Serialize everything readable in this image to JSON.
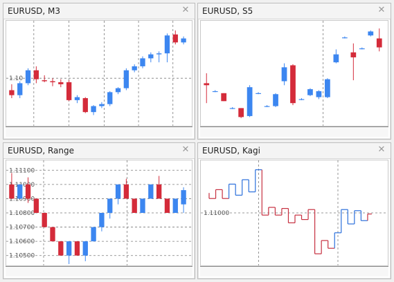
{
  "colors": {
    "bull": "#3c86f0",
    "bear": "#d42b3a",
    "grid": "#7a7a7a",
    "kagi_up": "#2a6fdb",
    "kagi_down": "#c62f3f"
  },
  "panels": [
    {
      "title": "EURUSD, M3",
      "close_icon": "close-icon",
      "price_labels": [
        "1.10"
      ],
      "chart_data": {
        "type": "candlestick",
        "candles": [
          {
            "o": 1.0988,
            "h": 1.0994,
            "l": 1.098,
            "c": 1.0983
          },
          {
            "o": 1.0983,
            "h": 1.0997,
            "l": 1.098,
            "c": 1.0995
          },
          {
            "o": 1.0995,
            "h": 1.101,
            "l": 1.0993,
            "c": 1.1008
          },
          {
            "o": 1.1008,
            "h": 1.1012,
            "l": 1.0995,
            "c": 1.0999
          },
          {
            "o": 1.0998,
            "h": 1.1003,
            "l": 1.0996,
            "c": 1.0997
          },
          {
            "o": 1.0997,
            "h": 1.1,
            "l": 1.0992,
            "c": 1.0996
          },
          {
            "o": 1.0996,
            "h": 1.0999,
            "l": 1.0991,
            "c": 1.0994
          },
          {
            "o": 1.0996,
            "h": 1.0998,
            "l": 1.0977,
            "c": 1.0978
          },
          {
            "o": 1.0978,
            "h": 1.0983,
            "l": 1.0975,
            "c": 1.0981
          },
          {
            "o": 1.098,
            "h": 1.0981,
            "l": 1.0965,
            "c": 1.0966
          },
          {
            "o": 1.0966,
            "h": 1.0973,
            "l": 1.0963,
            "c": 1.0972
          },
          {
            "o": 1.0972,
            "h": 1.0976,
            "l": 1.097,
            "c": 1.0974
          },
          {
            "o": 1.0974,
            "h": 1.0987,
            "l": 1.0972,
            "c": 1.0986
          },
          {
            "o": 1.0986,
            "h": 1.0991,
            "l": 1.0984,
            "c": 1.099
          },
          {
            "o": 1.099,
            "h": 1.101,
            "l": 1.0988,
            "c": 1.1008
          },
          {
            "o": 1.1008,
            "h": 1.1014,
            "l": 1.1006,
            "c": 1.1012
          },
          {
            "o": 1.1012,
            "h": 1.1022,
            "l": 1.101,
            "c": 1.102
          },
          {
            "o": 1.102,
            "h": 1.1026,
            "l": 1.1016,
            "c": 1.1024
          },
          {
            "o": 1.1024,
            "h": 1.1027,
            "l": 1.1016,
            "c": 1.1025
          },
          {
            "o": 1.1025,
            "h": 1.1045,
            "l": 1.1016,
            "c": 1.1043
          },
          {
            "o": 1.1044,
            "h": 1.1048,
            "l": 1.1034,
            "c": 1.1036
          },
          {
            "o": 1.1036,
            "h": 1.1042,
            "l": 1.1034,
            "c": 1.104
          }
        ],
        "ylim": [
          1.0955,
          1.1055
        ],
        "hline": 1.1,
        "vlines": [
          3.2,
          7.5,
          11.8,
          16.0,
          20.2
        ]
      }
    },
    {
      "title": "EURUSD, S5",
      "close_icon": "close-icon",
      "price_labels": [],
      "chart_data": {
        "type": "candlestick",
        "candles": [
          {
            "o": 1.1,
            "h": 1.101,
            "l": 1.098,
            "c": 1.0998
          },
          {
            "o": 1.0992,
            "h": 1.0993,
            "l": 1.0991,
            "c": 1.0992
          },
          {
            "o": 1.099,
            "h": 1.099,
            "l": 1.0982,
            "c": 1.0982
          },
          {
            "o": 1.0975,
            "h": 1.0976,
            "l": 1.0974,
            "c": 1.0975
          },
          {
            "o": 1.0975,
            "h": 1.0975,
            "l": 1.0965,
            "c": 1.0966
          },
          {
            "o": 1.0967,
            "h": 1.0998,
            "l": 1.0966,
            "c": 1.0996
          },
          {
            "o": 1.099,
            "h": 1.0991,
            "l": 1.0989,
            "c": 1.099
          },
          {
            "o": 1.0977,
            "h": 1.0978,
            "l": 1.0976,
            "c": 1.0977
          },
          {
            "o": 1.0977,
            "h": 1.099,
            "l": 1.0976,
            "c": 1.0989
          },
          {
            "o": 1.1002,
            "h": 1.102,
            "l": 1.0998,
            "c": 1.1016
          },
          {
            "o": 1.1018,
            "h": 1.1019,
            "l": 1.0978,
            "c": 1.098
          },
          {
            "o": 1.0984,
            "h": 1.0985,
            "l": 1.0983,
            "c": 1.0984
          },
          {
            "o": 1.0988,
            "h": 1.0995,
            "l": 1.0987,
            "c": 1.0994
          },
          {
            "o": 1.0986,
            "h": 1.0993,
            "l": 1.0984,
            "c": 1.0992
          },
          {
            "o": 1.0986,
            "h": 1.1005,
            "l": 1.0985,
            "c": 1.1004
          },
          {
            "o": 1.1021,
            "h": 1.1034,
            "l": 1.102,
            "c": 1.1029
          },
          {
            "o": 1.1046,
            "h": 1.1047,
            "l": 1.1045,
            "c": 1.1046
          },
          {
            "o": 1.1031,
            "h": 1.104,
            "l": 1.1003,
            "c": 1.1026
          },
          {
            "o": 1.1035,
            "h": 1.1036,
            "l": 1.1034,
            "c": 1.1035
          },
          {
            "o": 1.1048,
            "h": 1.1053,
            "l": 1.1047,
            "c": 1.1052
          },
          {
            "o": 1.1045,
            "h": 1.1055,
            "l": 1.1032,
            "c": 1.1036
          }
        ],
        "ylim": [
          1.096,
          1.106
        ],
        "hline": null,
        "vlines": [
          14.0
        ]
      }
    },
    {
      "title": "EURUSD, Range",
      "close_icon": "close-icon",
      "price_labels": [
        "1.11100",
        "1.11000",
        "1.10900",
        "1.10800",
        "1.10700",
        "1.10600",
        "1.10500"
      ],
      "chart_data": {
        "type": "candlestick",
        "y_ticks": [
          1.111,
          1.11,
          1.109,
          1.108,
          1.107,
          1.106,
          1.105
        ],
        "candles": [
          {
            "o": 1.11,
            "h": 1.1108,
            "l": 1.109,
            "c": 1.109
          },
          {
            "o": 1.109,
            "h": 1.11,
            "l": 1.109,
            "c": 1.11
          },
          {
            "o": 1.11,
            "h": 1.1105,
            "l": 1.1087,
            "c": 1.109
          },
          {
            "o": 1.109,
            "h": 1.109,
            "l": 1.108,
            "c": 1.108
          },
          {
            "o": 1.108,
            "h": 1.108,
            "l": 1.107,
            "c": 1.107
          },
          {
            "o": 1.107,
            "h": 1.107,
            "l": 1.106,
            "c": 1.106
          },
          {
            "o": 1.106,
            "h": 1.106,
            "l": 1.105,
            "c": 1.105
          },
          {
            "o": 1.105,
            "h": 1.106,
            "l": 1.1044,
            "c": 1.106
          },
          {
            "o": 1.106,
            "h": 1.106,
            "l": 1.105,
            "c": 1.105
          },
          {
            "o": 1.105,
            "h": 1.106,
            "l": 1.1046,
            "c": 1.106
          },
          {
            "o": 1.106,
            "h": 1.107,
            "l": 1.106,
            "c": 1.107
          },
          {
            "o": 1.107,
            "h": 1.108,
            "l": 1.1067,
            "c": 1.108
          },
          {
            "o": 1.108,
            "h": 1.109,
            "l": 1.1076,
            "c": 1.109
          },
          {
            "o": 1.109,
            "h": 1.11,
            "l": 1.1086,
            "c": 1.11
          },
          {
            "o": 1.11,
            "h": 1.1104,
            "l": 1.109,
            "c": 1.109
          },
          {
            "o": 1.109,
            "h": 1.109,
            "l": 1.108,
            "c": 1.108
          },
          {
            "o": 1.108,
            "h": 1.109,
            "l": 1.108,
            "c": 1.109
          },
          {
            "o": 1.109,
            "h": 1.11,
            "l": 1.109,
            "c": 1.11
          },
          {
            "o": 1.11,
            "h": 1.1106,
            "l": 1.109,
            "c": 1.109
          },
          {
            "o": 1.109,
            "h": 1.109,
            "l": 1.108,
            "c": 1.108
          },
          {
            "o": 1.108,
            "h": 1.109,
            "l": 1.108,
            "c": 1.109
          },
          {
            "o": 1.1086,
            "h": 1.1098,
            "l": 1.108,
            "c": 1.1096
          }
        ],
        "ylim": [
          1.1045,
          1.1115
        ],
        "hlines": [
          1.111,
          1.11,
          1.109,
          1.108,
          1.107,
          1.106,
          1.105
        ],
        "vlines": [
          4.4,
          14.6
        ]
      }
    },
    {
      "title": "EURUSD, Kagi",
      "close_icon": "close-icon",
      "price_labels": [
        "1.11000"
      ],
      "chart_data": {
        "type": "kagi",
        "y_ticks": [
          1.11
        ],
        "segments": [
          {
            "x": 0,
            "y0": 1.1118,
            "y1": 1.1118,
            "up": false
          },
          {
            "x": 0,
            "y0": 1.1118,
            "y1": 1.1113,
            "up": false
          },
          {
            "x": 1,
            "y0": 1.1113,
            "y1": 1.1121,
            "up": false
          },
          {
            "x": 2,
            "y0": 1.1121,
            "y1": 1.1113,
            "up": false
          },
          {
            "x": 3,
            "y0": 1.1113,
            "y1": 1.1126,
            "up": true
          },
          {
            "x": 4,
            "y0": 1.1126,
            "y1": 1.1116,
            "up": true
          },
          {
            "x": 5,
            "y0": 1.1116,
            "y1": 1.113,
            "up": true
          },
          {
            "x": 6,
            "y0": 1.113,
            "y1": 1.1119,
            "up": true
          },
          {
            "x": 7,
            "y0": 1.1119,
            "y1": 1.1139,
            "up": true
          },
          {
            "x": 8,
            "y0": 1.1139,
            "y1": 1.1098,
            "up": false
          },
          {
            "x": 9,
            "y0": 1.1098,
            "y1": 1.1105,
            "up": false
          },
          {
            "x": 10,
            "y0": 1.1105,
            "y1": 1.1098,
            "up": false
          },
          {
            "x": 11,
            "y0": 1.1098,
            "y1": 1.1104,
            "up": false
          },
          {
            "x": 12,
            "y0": 1.1104,
            "y1": 1.1091,
            "up": false
          },
          {
            "x": 13,
            "y0": 1.1091,
            "y1": 1.1098,
            "up": false
          },
          {
            "x": 14,
            "y0": 1.1098,
            "y1": 1.1094,
            "up": false
          },
          {
            "x": 15,
            "y0": 1.1094,
            "y1": 1.1103,
            "up": false
          },
          {
            "x": 16,
            "y0": 1.1103,
            "y1": 1.1063,
            "up": false
          },
          {
            "x": 17,
            "y0": 1.1063,
            "y1": 1.1075,
            "up": false
          },
          {
            "x": 18,
            "y0": 1.1075,
            "y1": 1.1068,
            "up": false
          },
          {
            "x": 19,
            "y0": 1.1068,
            "y1": 1.1082,
            "up": true
          },
          {
            "x": 20,
            "y0": 1.1082,
            "y1": 1.1103,
            "up": true
          },
          {
            "x": 21,
            "y0": 1.1103,
            "y1": 1.109,
            "up": true
          },
          {
            "x": 22,
            "y0": 1.109,
            "y1": 1.1102,
            "up": true
          },
          {
            "x": 23,
            "y0": 1.1102,
            "y1": 1.1093,
            "up": true
          },
          {
            "x": 24,
            "y0": 1.1093,
            "y1": 1.1099,
            "up": false
          }
        ],
        "ylim": [
          1.1055,
          1.1145
        ],
        "hline": 1.11,
        "vlines": [
          7.0,
          19.0
        ]
      }
    }
  ]
}
